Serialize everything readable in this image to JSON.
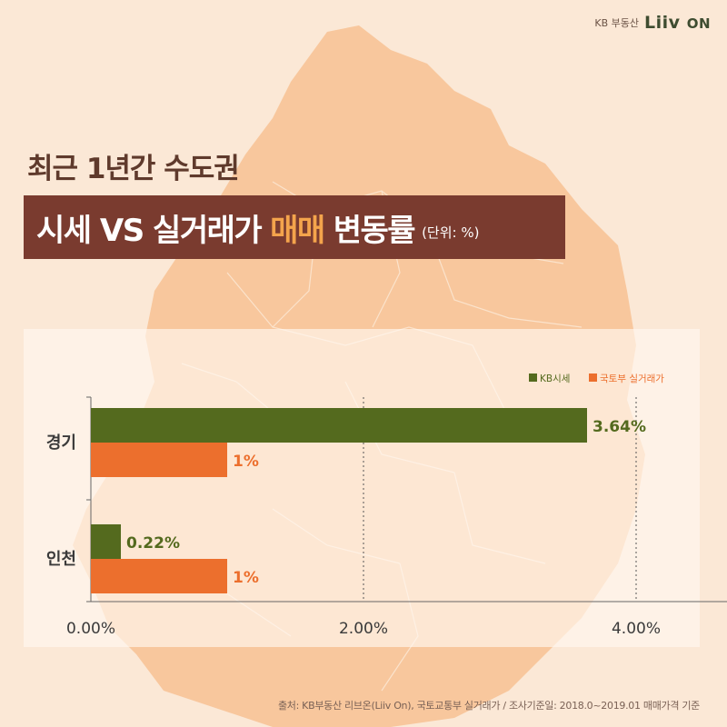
{
  "brand": {
    "company": "KB 부동산",
    "logo": "Liiv",
    "logo_suffix": "ON"
  },
  "title": {
    "line1": "최근 1년간 수도권",
    "main": "시세 VS 실거래가",
    "highlight": "매매",
    "tail": "변동률",
    "unit": "(단위: %)"
  },
  "colors": {
    "kb": "#546a1e",
    "molit": "#ec6f2d",
    "title_box": "#7a3b2f",
    "highlight": "#f4a44c"
  },
  "chart_data": {
    "type": "bar",
    "orientation": "horizontal",
    "categories": [
      "경기",
      "인천"
    ],
    "series": [
      {
        "name": "KB시세",
        "values": [
          3.64,
          0.22
        ],
        "labels": [
          "3.64%",
          "0.22%"
        ]
      },
      {
        "name": "국토부 실거래가",
        "values": [
          1,
          1
        ],
        "labels": [
          "1%",
          "1%"
        ]
      }
    ],
    "xlim": [
      0,
      4.5
    ],
    "xticks": [
      0,
      2,
      4
    ],
    "xtick_labels": [
      "0.00%",
      "2.00%",
      "4.00%"
    ],
    "grid": "dotted vertical",
    "legend_position": "top-right"
  },
  "source": "출처: KB부동산 리브온(Liiv On), 국토교통부 실거래가 / 조사기준일: 2018.0~2019.01 매매가격 기준"
}
